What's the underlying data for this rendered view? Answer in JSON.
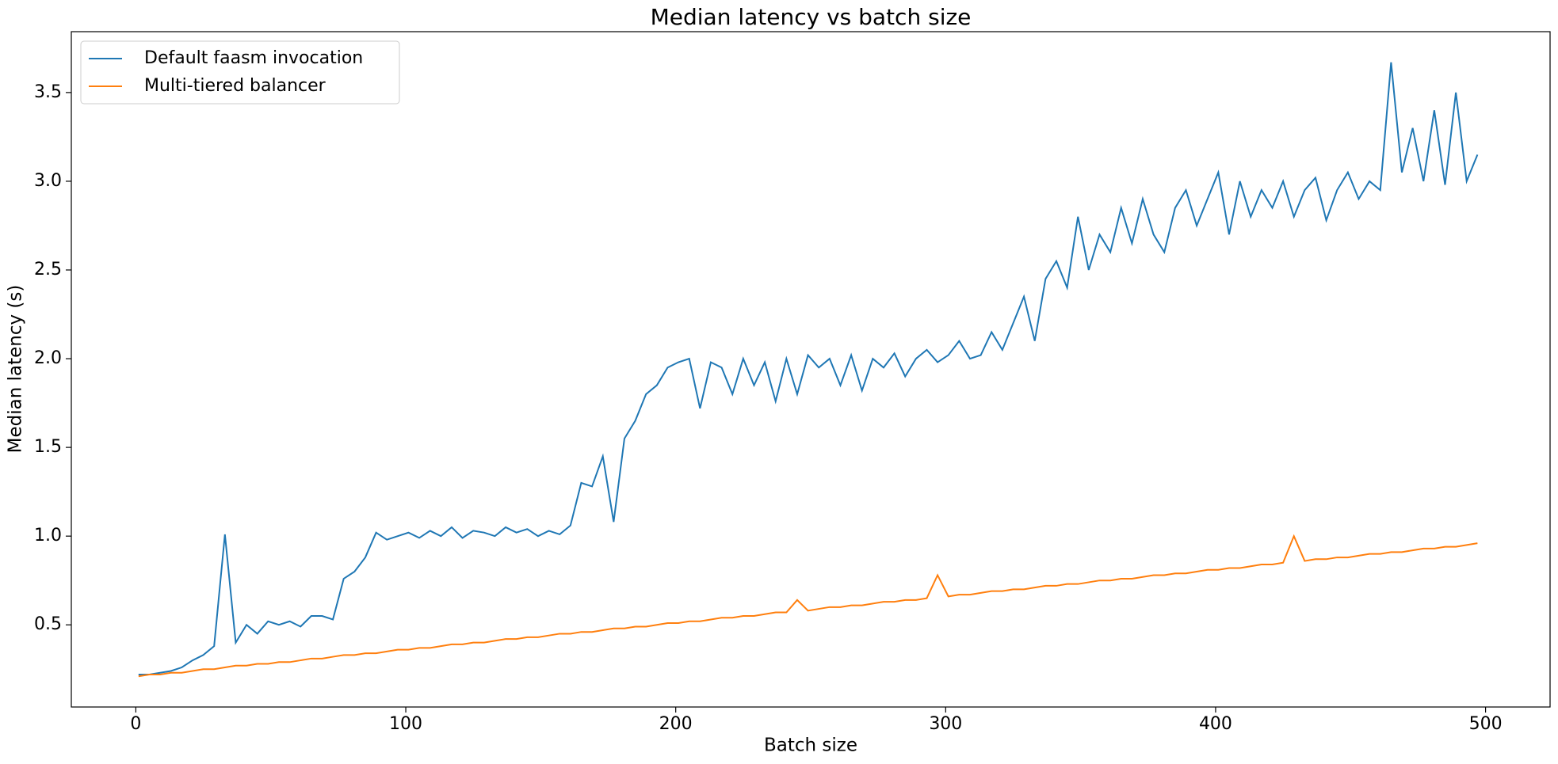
{
  "chart_data": {
    "type": "line",
    "title": "Median latency vs batch size",
    "xlabel": "Batch size",
    "ylabel": "Median latency (s)",
    "x": [
      1,
      5,
      9,
      13,
      17,
      21,
      25,
      29,
      33,
      37,
      41,
      45,
      49,
      53,
      57,
      61,
      65,
      69,
      73,
      77,
      81,
      85,
      89,
      93,
      97,
      101,
      105,
      109,
      113,
      117,
      121,
      125,
      129,
      133,
      137,
      141,
      145,
      149,
      153,
      157,
      161,
      165,
      169,
      173,
      177,
      181,
      185,
      189,
      193,
      197,
      201,
      205,
      209,
      213,
      217,
      221,
      225,
      229,
      233,
      237,
      241,
      245,
      249,
      253,
      257,
      261,
      265,
      269,
      273,
      277,
      281,
      285,
      289,
      293,
      297,
      301,
      305,
      309,
      313,
      317,
      321,
      325,
      329,
      333,
      337,
      341,
      345,
      349,
      353,
      357,
      361,
      365,
      369,
      373,
      377,
      381,
      385,
      389,
      393,
      397,
      401,
      405,
      409,
      413,
      417,
      421,
      425,
      429,
      433,
      437,
      441,
      445,
      449,
      453,
      457,
      461,
      465,
      469,
      473,
      477,
      481,
      485,
      489,
      493,
      497
    ],
    "series": [
      {
        "name": "Default faasm invocation",
        "color": "#1f77b4",
        "values": [
          0.22,
          0.22,
          0.23,
          0.24,
          0.26,
          0.3,
          0.33,
          0.38,
          1.01,
          0.4,
          0.5,
          0.45,
          0.52,
          0.5,
          0.52,
          0.49,
          0.55,
          0.55,
          0.53,
          0.76,
          0.8,
          0.88,
          1.02,
          0.98,
          1.0,
          1.02,
          0.99,
          1.03,
          1.0,
          1.05,
          0.99,
          1.03,
          1.02,
          1.0,
          1.05,
          1.02,
          1.04,
          1.0,
          1.03,
          1.01,
          1.06,
          1.3,
          1.28,
          1.45,
          1.08,
          1.55,
          1.65,
          1.8,
          1.85,
          1.95,
          1.98,
          2.0,
          1.72,
          1.98,
          1.95,
          1.8,
          2.0,
          1.85,
          1.98,
          1.76,
          2.0,
          1.8,
          2.02,
          1.95,
          2.0,
          1.85,
          2.02,
          1.82,
          2.0,
          1.95,
          2.03,
          1.9,
          2.0,
          2.05,
          1.98,
          2.02,
          2.1,
          2.0,
          2.02,
          2.15,
          2.05,
          2.2,
          2.35,
          2.1,
          2.45,
          2.55,
          2.4,
          2.8,
          2.5,
          2.7,
          2.6,
          2.85,
          2.65,
          2.9,
          2.7,
          2.6,
          2.85,
          2.95,
          2.75,
          2.9,
          3.05,
          2.7,
          3.0,
          2.8,
          2.95,
          2.85,
          3.0,
          2.8,
          2.95,
          3.02,
          2.78,
          2.95,
          3.05,
          2.9,
          3.0,
          2.95,
          3.67,
          3.05,
          3.3,
          3.0,
          3.4,
          2.98,
          3.5,
          3.0,
          3.15
        ]
      },
      {
        "name": "Multi-tiered balancer",
        "color": "#ff7f0e",
        "values": [
          0.21,
          0.22,
          0.22,
          0.23,
          0.23,
          0.24,
          0.25,
          0.25,
          0.26,
          0.27,
          0.27,
          0.28,
          0.28,
          0.29,
          0.29,
          0.3,
          0.31,
          0.31,
          0.32,
          0.33,
          0.33,
          0.34,
          0.34,
          0.35,
          0.36,
          0.36,
          0.37,
          0.37,
          0.38,
          0.39,
          0.39,
          0.4,
          0.4,
          0.41,
          0.42,
          0.42,
          0.43,
          0.43,
          0.44,
          0.45,
          0.45,
          0.46,
          0.46,
          0.47,
          0.48,
          0.48,
          0.49,
          0.49,
          0.5,
          0.51,
          0.51,
          0.52,
          0.52,
          0.53,
          0.54,
          0.54,
          0.55,
          0.55,
          0.56,
          0.57,
          0.57,
          0.64,
          0.58,
          0.59,
          0.6,
          0.6,
          0.61,
          0.61,
          0.62,
          0.63,
          0.63,
          0.64,
          0.64,
          0.65,
          0.78,
          0.66,
          0.67,
          0.67,
          0.68,
          0.69,
          0.69,
          0.7,
          0.7,
          0.71,
          0.72,
          0.72,
          0.73,
          0.73,
          0.74,
          0.75,
          0.75,
          0.76,
          0.76,
          0.77,
          0.78,
          0.78,
          0.79,
          0.79,
          0.8,
          0.81,
          0.81,
          0.82,
          0.82,
          0.83,
          0.84,
          0.84,
          0.85,
          1.0,
          0.86,
          0.87,
          0.87,
          0.88,
          0.88,
          0.89,
          0.9,
          0.9,
          0.91,
          0.91,
          0.92,
          0.93,
          0.93,
          0.94,
          0.94,
          0.95,
          0.96
        ]
      }
    ],
    "xlim": [
      -23.9,
      523.9
    ],
    "xticks": [
      0,
      100,
      200,
      300,
      400,
      500
    ],
    "ylim": [
      0.037,
      3.843
    ],
    "yticks": [
      0.5,
      {
        "value": 1,
        "label": "1.0"
      },
      1.5,
      {
        "value": 2,
        "label": "2.0"
      },
      2.5,
      {
        "value": 3,
        "label": "3.0"
      },
      3.5
    ],
    "grid": false,
    "legend": "upper left"
  }
}
